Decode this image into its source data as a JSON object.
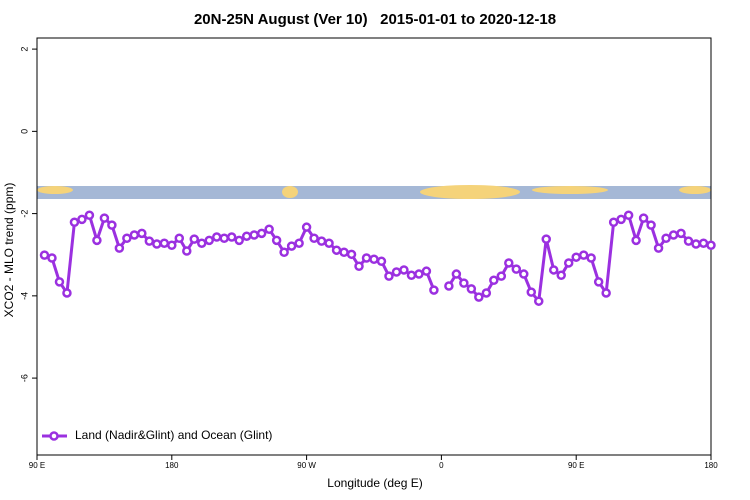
{
  "chart_data": {
    "type": "line",
    "title": "20N-25N August (Ver 10)   2015-01-01 to 2020-12-18",
    "xlabel": "Longitude (deg E)",
    "ylabel": "XCO2 - MLO trend (ppm)",
    "xlim": [
      90,
      540
    ],
    "ylim": [
      -7.87,
      2.27
    ],
    "xticks": [
      {
        "value": 90,
        "label": "90 E"
      },
      180,
      {
        "value": 270,
        "label": "90 W"
      },
      {
        "value": 360,
        "label": "0"
      },
      {
        "value": 450,
        "label": "90 E"
      },
      {
        "value": 540,
        "label": "180"
      }
    ],
    "yticks": [
      2,
      0,
      -2,
      -4,
      -6
    ],
    "legend": "bottom-left",
    "x": [
      95,
      100,
      105,
      110,
      115,
      120,
      125,
      130,
      135,
      140,
      145,
      150,
      155,
      160,
      165,
      170,
      175,
      180,
      185,
      190,
      195,
      200,
      205,
      210,
      215,
      220,
      225,
      230,
      235,
      240,
      245,
      250,
      255,
      260,
      265,
      270,
      275,
      280,
      285,
      290,
      295,
      300,
      305,
      310,
      315,
      320,
      325,
      330,
      335,
      340,
      345,
      350,
      355,
      360,
      365,
      370,
      375,
      380,
      385,
      390,
      395,
      400,
      405,
      410,
      415,
      420,
      425,
      430,
      435,
      440,
      445,
      450,
      455,
      460,
      465,
      470,
      475,
      480,
      485,
      490,
      495,
      500,
      505,
      510,
      515,
      520,
      525,
      530,
      535,
      540
    ],
    "series": [
      {
        "name": "Land (Nadir&Glint) and Ocean (Glint)",
        "color": "#9b30e0",
        "values": [
          -3.01,
          -3.08,
          -3.66,
          -3.93,
          -2.21,
          -2.14,
          -2.04,
          -2.65,
          -2.11,
          -2.28,
          -2.84,
          -2.6,
          -2.52,
          -2.48,
          -2.67,
          -2.74,
          -2.72,
          -2.77,
          -2.6,
          -2.91,
          -2.62,
          -2.72,
          -2.65,
          -2.57,
          -2.6,
          -2.57,
          -2.65,
          -2.55,
          -2.52,
          -2.48,
          -2.38,
          -2.65,
          -2.94,
          -2.79,
          -2.72,
          -2.33,
          -2.6,
          -2.67,
          -2.72,
          -2.89,
          -2.94,
          -2.99,
          -3.28,
          -3.08,
          -3.11,
          -3.16,
          -3.52,
          -3.42,
          -3.37,
          -3.5,
          -3.47,
          -3.4,
          -3.86,
          null,
          -3.76,
          -3.47,
          -3.69,
          -3.83,
          -4.03,
          -3.93,
          -3.62,
          -3.52,
          -3.2,
          -3.35,
          -3.47,
          -3.91,
          -4.13,
          -2.62,
          -3.37,
          -3.5,
          -3.2,
          -3.06,
          -3.01,
          -3.08,
          -3.66,
          -3.93,
          -2.21,
          -2.14,
          -2.04,
          -2.65,
          -2.11,
          -2.28,
          -2.84,
          -2.6,
          -2.52,
          -2.48,
          -2.67,
          -2.74,
          -2.72,
          -2.77
        ]
      }
    ]
  }
}
